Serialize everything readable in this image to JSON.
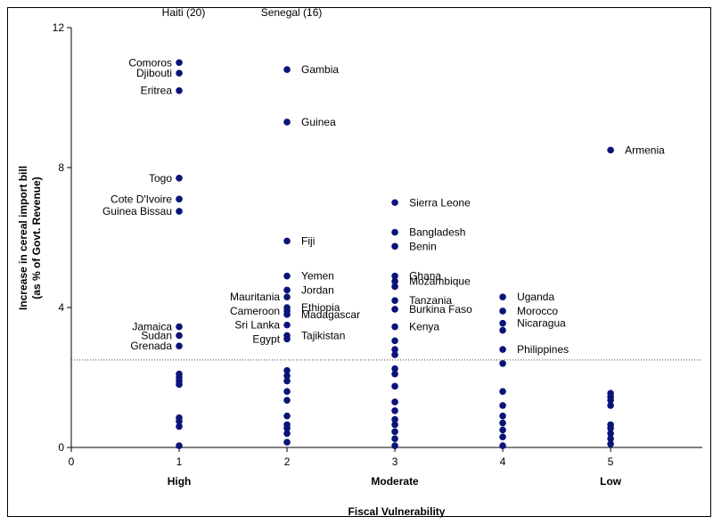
{
  "chart_data": {
    "type": "scatter",
    "xlabel": "Fiscal Vulnerability",
    "ylabel_lines": [
      "Increase in cereal import bill",
      "(as % of Govt. Revenue)"
    ],
    "xlim": [
      0,
      5.85
    ],
    "ylim": [
      0,
      12
    ],
    "x_ticks": [
      0,
      1,
      2,
      3,
      4,
      5
    ],
    "y_ticks": [
      0,
      4,
      8,
      12
    ],
    "category_labels": [
      {
        "x": 1,
        "label": "High"
      },
      {
        "x": 3,
        "label": "Moderate"
      },
      {
        "x": 5,
        "label": "Low"
      }
    ],
    "reference_line": {
      "y": 2.5,
      "style": "dotted"
    },
    "offscale_labels": [
      {
        "x": 1,
        "label": "Haiti (20)"
      },
      {
        "x": 2,
        "label": "Senegal (16)"
      }
    ],
    "marker_color": "#0a1478",
    "points": [
      {
        "x": 1,
        "y": 11.0,
        "label": "Comoros",
        "anchor": "end"
      },
      {
        "x": 1,
        "y": 10.7,
        "label": "Djibouti",
        "anchor": "end"
      },
      {
        "x": 1,
        "y": 10.2,
        "label": "Eritrea",
        "anchor": "end"
      },
      {
        "x": 1,
        "y": 7.7,
        "label": "Togo",
        "anchor": "end"
      },
      {
        "x": 1,
        "y": 7.1,
        "label": "Cote D'Ivoire",
        "anchor": "end"
      },
      {
        "x": 1,
        "y": 6.75,
        "label": "Guinea Bissau",
        "anchor": "end"
      },
      {
        "x": 1,
        "y": 3.45,
        "label": "Jamaica",
        "anchor": "end"
      },
      {
        "x": 1,
        "y": 3.2,
        "label": "Sudan",
        "anchor": "end"
      },
      {
        "x": 1,
        "y": 2.9,
        "label": "Grenada",
        "anchor": "end"
      },
      {
        "x": 1,
        "y": 2.1
      },
      {
        "x": 1,
        "y": 2.0
      },
      {
        "x": 1,
        "y": 1.9
      },
      {
        "x": 1,
        "y": 1.8
      },
      {
        "x": 1,
        "y": 0.85
      },
      {
        "x": 1,
        "y": 0.75
      },
      {
        "x": 1,
        "y": 0.6
      },
      {
        "x": 1,
        "y": 0.05
      },
      {
        "x": 2,
        "y": 10.8,
        "label": "Gambia",
        "anchor": "start"
      },
      {
        "x": 2,
        "y": 9.3,
        "label": "Guinea",
        "anchor": "start"
      },
      {
        "x": 2,
        "y": 5.9,
        "label": "Fiji",
        "anchor": "start"
      },
      {
        "x": 2,
        "y": 4.9,
        "label": "Yemen",
        "anchor": "start"
      },
      {
        "x": 2,
        "y": 4.5,
        "label": "Jordan",
        "anchor": "start"
      },
      {
        "x": 2,
        "y": 4.3,
        "label": "Mauritania",
        "anchor": "end"
      },
      {
        "x": 2,
        "y": 4.0,
        "label": "Ethiopia",
        "anchor": "start"
      },
      {
        "x": 2,
        "y": 3.9,
        "label": "Cameroon",
        "anchor": "end"
      },
      {
        "x": 2,
        "y": 3.8,
        "label": "Madagascar",
        "anchor": "start"
      },
      {
        "x": 2,
        "y": 3.5,
        "label": "Sri Lanka",
        "anchor": "end"
      },
      {
        "x": 2,
        "y": 3.2,
        "label": "Tajikistan",
        "anchor": "start"
      },
      {
        "x": 2,
        "y": 3.1,
        "label": "Egypt",
        "anchor": "end"
      },
      {
        "x": 2,
        "y": 2.2
      },
      {
        "x": 2,
        "y": 2.05
      },
      {
        "x": 2,
        "y": 1.9
      },
      {
        "x": 2,
        "y": 1.6
      },
      {
        "x": 2,
        "y": 1.35
      },
      {
        "x": 2,
        "y": 0.9
      },
      {
        "x": 2,
        "y": 0.65
      },
      {
        "x": 2,
        "y": 0.55
      },
      {
        "x": 2,
        "y": 0.4
      },
      {
        "x": 2,
        "y": 0.15
      },
      {
        "x": 3,
        "y": 7.0,
        "label": "Sierra Leone",
        "anchor": "start"
      },
      {
        "x": 3,
        "y": 6.15,
        "label": "Bangladesh",
        "anchor": "start"
      },
      {
        "x": 3,
        "y": 5.75,
        "label": "Benin",
        "anchor": "start"
      },
      {
        "x": 3,
        "y": 4.9,
        "label": "Ghana",
        "anchor": "start"
      },
      {
        "x": 3,
        "y": 4.75,
        "label": "Mozambique",
        "anchor": "start"
      },
      {
        "x": 3,
        "y": 4.6
      },
      {
        "x": 3,
        "y": 4.2,
        "label": "Tanzania",
        "anchor": "start"
      },
      {
        "x": 3,
        "y": 3.95,
        "label": "Burkina Faso",
        "anchor": "start"
      },
      {
        "x": 3,
        "y": 3.45,
        "label": "Kenya",
        "anchor": "start"
      },
      {
        "x": 3,
        "y": 3.05
      },
      {
        "x": 3,
        "y": 2.8
      },
      {
        "x": 3,
        "y": 2.65
      },
      {
        "x": 3,
        "y": 2.25
      },
      {
        "x": 3,
        "y": 2.1
      },
      {
        "x": 3,
        "y": 1.75
      },
      {
        "x": 3,
        "y": 1.3
      },
      {
        "x": 3,
        "y": 1.05
      },
      {
        "x": 3,
        "y": 0.8
      },
      {
        "x": 3,
        "y": 0.65
      },
      {
        "x": 3,
        "y": 0.45
      },
      {
        "x": 3,
        "y": 0.25
      },
      {
        "x": 3,
        "y": 0.05
      },
      {
        "x": 4,
        "y": 4.3,
        "label": "Uganda",
        "anchor": "start"
      },
      {
        "x": 4,
        "y": 3.9,
        "label": "Morocco",
        "anchor": "start"
      },
      {
        "x": 4,
        "y": 3.55,
        "label": "Nicaragua",
        "anchor": "start"
      },
      {
        "x": 4,
        "y": 3.35
      },
      {
        "x": 4,
        "y": 2.8,
        "label": "Philippines",
        "anchor": "start"
      },
      {
        "x": 4,
        "y": 2.4
      },
      {
        "x": 4,
        "y": 1.6
      },
      {
        "x": 4,
        "y": 1.2
      },
      {
        "x": 4,
        "y": 0.9
      },
      {
        "x": 4,
        "y": 0.7
      },
      {
        "x": 4,
        "y": 0.5
      },
      {
        "x": 4,
        "y": 0.3
      },
      {
        "x": 4,
        "y": 0.05
      },
      {
        "x": 5,
        "y": 8.5,
        "label": "Armenia",
        "anchor": "start"
      },
      {
        "x": 5,
        "y": 1.55
      },
      {
        "x": 5,
        "y": 1.45
      },
      {
        "x": 5,
        "y": 1.35
      },
      {
        "x": 5,
        "y": 1.2
      },
      {
        "x": 5,
        "y": 0.65
      },
      {
        "x": 5,
        "y": 0.55
      },
      {
        "x": 5,
        "y": 0.4
      },
      {
        "x": 5,
        "y": 0.25
      },
      {
        "x": 5,
        "y": 0.1
      }
    ]
  }
}
